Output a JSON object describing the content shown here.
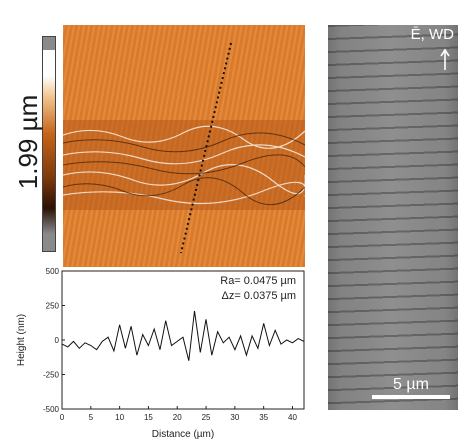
{
  "header": {
    "title_fragment": "...(..)"
  },
  "afm": {
    "height_scale_label": "1.99 µm",
    "colormap": [
      "#ffffff",
      "#f1c48e",
      "#c8641a",
      "#7c3a0a",
      "#2a1206"
    ]
  },
  "sem": {
    "direction_label": "Ē, WD",
    "scalebar_label": "5 µm"
  },
  "chart_data": {
    "type": "line",
    "xlabel": "Distance (µm)",
    "ylabel": "Height (nm)",
    "xlim": [
      0,
      42
    ],
    "ylim": [
      -500,
      500
    ],
    "xticks": [
      0,
      5,
      10,
      15,
      20,
      25,
      30,
      35,
      40
    ],
    "yticks": [
      -500,
      -250,
      0,
      250,
      500
    ],
    "annotations": [
      "Ra= 0.0475 µm",
      "Δz= 0.0375 µm"
    ],
    "series": [
      {
        "color": "#111111",
        "x": [
          0,
          1,
          2,
          3,
          4,
          5,
          6,
          7,
          8,
          9,
          10,
          11,
          12,
          13,
          14,
          15,
          16,
          17,
          18,
          19,
          20,
          21,
          22,
          23,
          24,
          25,
          26,
          27,
          28,
          29,
          30,
          31,
          32,
          33,
          34,
          35,
          36,
          37,
          38,
          39,
          40,
          41,
          42
        ],
        "y": [
          -30,
          -50,
          -10,
          -60,
          -20,
          -40,
          -70,
          -10,
          20,
          -80,
          110,
          -60,
          100,
          -110,
          40,
          -40,
          80,
          -70,
          140,
          -40,
          -10,
          20,
          -150,
          210,
          -90,
          150,
          -110,
          60,
          -20,
          20,
          -70,
          30,
          -110,
          30,
          -60,
          120,
          -40,
          70,
          -30,
          0,
          -20,
          10,
          -10
        ]
      }
    ]
  }
}
